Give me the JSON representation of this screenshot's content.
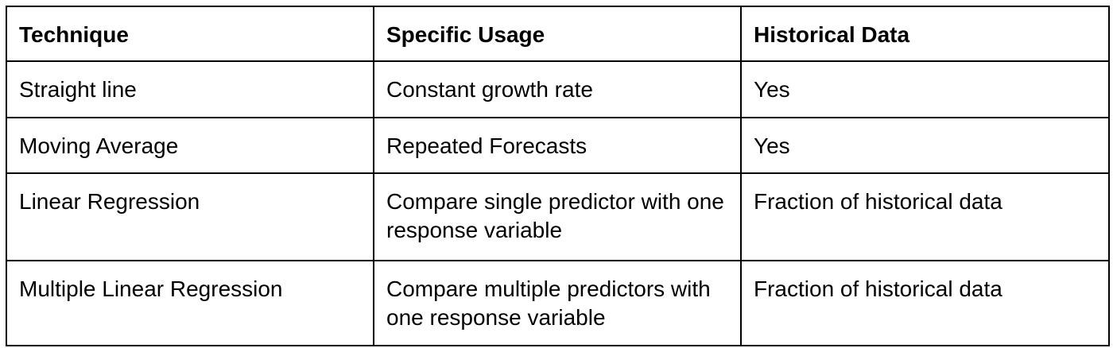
{
  "table": {
    "headers": [
      "Technique",
      "Specific Usage",
      "Historical Data"
    ],
    "rows": [
      [
        "Straight line",
        "Constant growth rate",
        "Yes"
      ],
      [
        "Moving Average",
        "Repeated Forecasts",
        "Yes"
      ],
      [
        "Linear Regression",
        "Compare single predictor with one response variable",
        "Fraction of historical data"
      ],
      [
        "Multiple Linear Regression",
        "Compare multiple predictors with one response variable",
        "Fraction of historical data"
      ]
    ]
  }
}
